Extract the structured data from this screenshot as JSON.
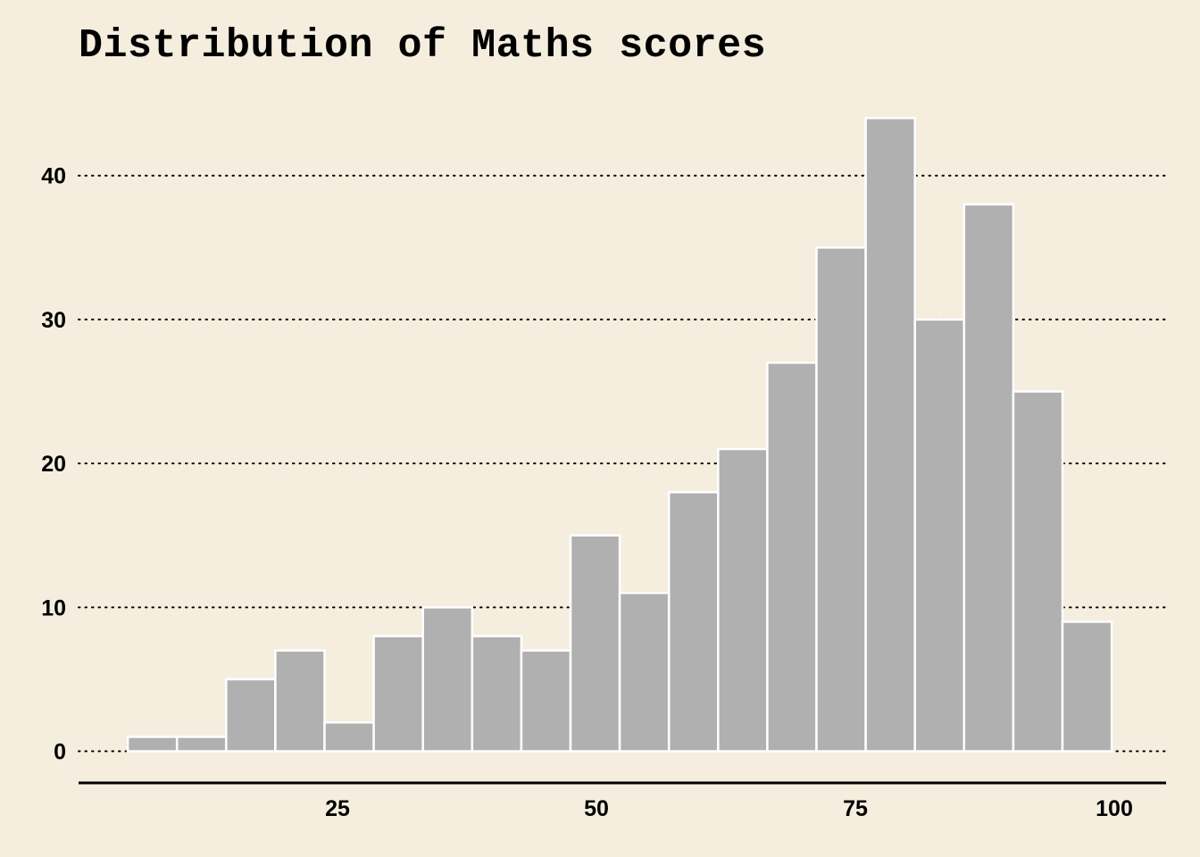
{
  "chart_data": {
    "type": "bar",
    "subtype": "histogram",
    "title": "Distribution of Maths scores",
    "xlabel": "",
    "ylabel": "",
    "bin_width": 4.75,
    "bins": [
      {
        "x0": 4.75,
        "x1": 9.5,
        "count": 1
      },
      {
        "x0": 9.5,
        "x1": 14.25,
        "count": 1
      },
      {
        "x0": 14.25,
        "x1": 19.0,
        "count": 5
      },
      {
        "x0": 19.0,
        "x1": 23.75,
        "count": 7
      },
      {
        "x0": 23.75,
        "x1": 28.5,
        "count": 2
      },
      {
        "x0": 28.5,
        "x1": 33.25,
        "count": 8
      },
      {
        "x0": 33.25,
        "x1": 38.0,
        "count": 10
      },
      {
        "x0": 38.0,
        "x1": 42.75,
        "count": 8
      },
      {
        "x0": 42.75,
        "x1": 47.5,
        "count": 7
      },
      {
        "x0": 47.5,
        "x1": 52.25,
        "count": 15
      },
      {
        "x0": 52.25,
        "x1": 57.0,
        "count": 11
      },
      {
        "x0": 57.0,
        "x1": 61.75,
        "count": 18
      },
      {
        "x0": 61.75,
        "x1": 66.5,
        "count": 21
      },
      {
        "x0": 66.5,
        "x1": 71.25,
        "count": 27
      },
      {
        "x0": 71.25,
        "x1": 76.0,
        "count": 35
      },
      {
        "x0": 76.0,
        "x1": 80.75,
        "count": 44
      },
      {
        "x0": 80.75,
        "x1": 85.5,
        "count": 30
      },
      {
        "x0": 85.5,
        "x1": 90.25,
        "count": 38
      },
      {
        "x0": 90.25,
        "x1": 95.0,
        "count": 25
      },
      {
        "x0": 95.0,
        "x1": 99.75,
        "count": 9
      }
    ],
    "xlim": [
      0,
      105
    ],
    "ylim": [
      -2.2,
      46
    ],
    "xticks": [
      25,
      50,
      75,
      100
    ],
    "yticks": [
      0,
      10,
      20,
      30,
      40
    ],
    "grid": "horizontal-dotted",
    "legend": "none",
    "colors": {
      "background": "#F5EEDE",
      "bar_fill": "#B0B0B0",
      "bar_edge": "#FFFFFF",
      "axis": "#000000",
      "grid": "#000000"
    }
  }
}
